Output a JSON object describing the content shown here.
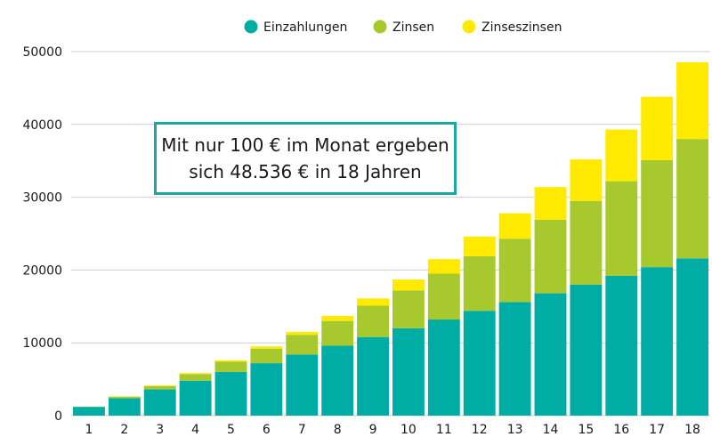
{
  "chart_data": {
    "type": "bar",
    "stacked": true,
    "categories": [
      "1",
      "2",
      "3",
      "4",
      "5",
      "6",
      "7",
      "8",
      "9",
      "10",
      "11",
      "12",
      "13",
      "14",
      "15",
      "16",
      "17",
      "18"
    ],
    "series": [
      {
        "name": "Einzahlungen",
        "color": "#00ada5",
        "values": [
          1200,
          2400,
          3600,
          4800,
          6000,
          7200,
          8400,
          9600,
          10800,
          12000,
          13200,
          14400,
          15600,
          16800,
          18000,
          19200,
          20400,
          21600
        ]
      },
      {
        "name": "Zinsen",
        "color": "#a8c92e",
        "values": [
          50,
          200,
          450,
          900,
          1400,
          2000,
          2700,
          3400,
          4300,
          5200,
          6300,
          7500,
          8700,
          10100,
          11500,
          13000,
          14700,
          16400
        ]
      },
      {
        "name": "Zinseszinsen",
        "color": "#ffea00",
        "values": [
          0,
          50,
          100,
          150,
          200,
          300,
          400,
          700,
          1000,
          1500,
          2000,
          2700,
          3500,
          4500,
          5700,
          7100,
          8700,
          10536
        ]
      }
    ],
    "yticks": [
      0,
      10000,
      20000,
      30000,
      40000,
      50000
    ],
    "ylim": [
      0,
      50000
    ],
    "grid": true,
    "legend": "top-center"
  },
  "annotation": {
    "line1": "Mit nur 100 € im Monat ergeben",
    "line2": "sich 48.536 € in 18 Jahren"
  }
}
